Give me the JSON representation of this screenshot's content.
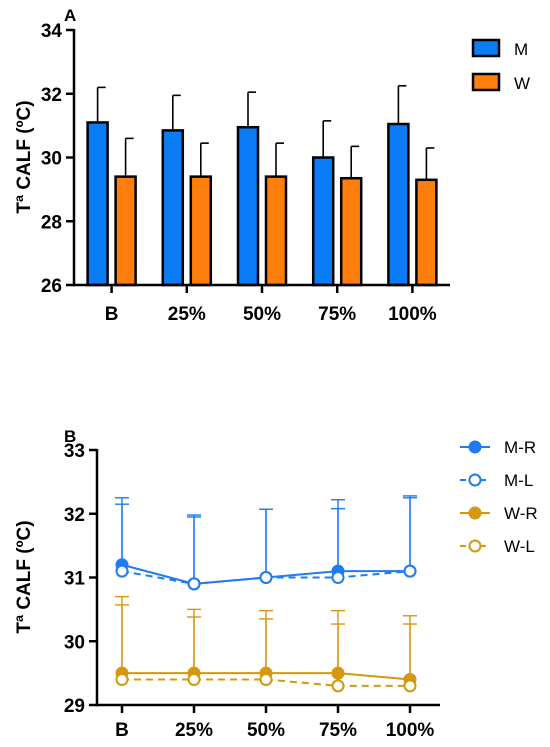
{
  "chart_data": [
    {
      "panel_label": "A",
      "type": "bar",
      "ylabel": "Tª CALF (ºC)",
      "ylim": [
        26,
        34
      ],
      "yticks": [
        26,
        28,
        30,
        32,
        34
      ],
      "categories": [
        "B",
        "25%",
        "50%",
        "75%",
        "100%"
      ],
      "legend_position": "top-right",
      "series": [
        {
          "name": "M",
          "color": "#0a7cf5",
          "values": [
            31.1,
            30.85,
            30.95,
            30.0,
            31.05
          ],
          "errors": [
            1.1,
            1.1,
            1.1,
            1.15,
            1.2
          ]
        },
        {
          "name": "W",
          "color": "#ff7f0e",
          "values": [
            29.4,
            29.4,
            29.4,
            29.35,
            29.3
          ],
          "errors": [
            1.2,
            1.05,
            1.05,
            1.0,
            1.0
          ]
        }
      ]
    },
    {
      "panel_label": "B",
      "type": "line",
      "ylabel": "Tª CALF (ºC)",
      "ylim": [
        29,
        33
      ],
      "yticks": [
        29,
        30,
        31,
        32,
        33
      ],
      "categories": [
        "B",
        "25%",
        "50%",
        "75%",
        "100%"
      ],
      "legend_position": "top-right",
      "series": [
        {
          "name": "M-R",
          "color": "#1f7cf0",
          "style": "solid",
          "marker": "filled",
          "values": [
            31.2,
            30.9,
            31.0,
            31.1,
            31.1
          ],
          "errors": [
            1.05,
            1.05,
            1.07,
            1.12,
            1.15
          ]
        },
        {
          "name": "M-L",
          "color": "#1f7cf0",
          "style": "dashed",
          "marker": "open",
          "values": [
            31.1,
            30.9,
            31.0,
            31.0,
            31.1
          ],
          "errors": [
            1.05,
            1.08,
            1.07,
            1.08,
            1.18
          ]
        },
        {
          "name": "W-R",
          "color": "#d4990f",
          "style": "solid",
          "marker": "filled",
          "values": [
            29.5,
            29.5,
            29.5,
            29.5,
            29.4
          ],
          "errors": [
            1.2,
            1.0,
            0.98,
            0.98,
            1.0
          ]
        },
        {
          "name": "W-L",
          "color": "#d4990f",
          "style": "dashed",
          "marker": "open",
          "values": [
            29.4,
            29.4,
            29.4,
            29.3,
            29.3
          ],
          "errors": [
            1.17,
            0.98,
            0.95,
            0.97,
            0.97
          ]
        }
      ]
    }
  ]
}
